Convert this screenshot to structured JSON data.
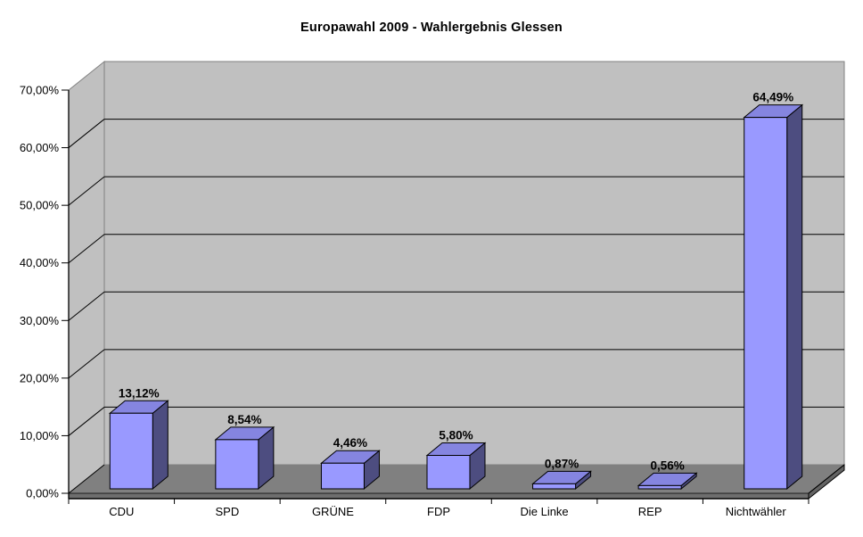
{
  "chart_data": {
    "type": "bar",
    "style": "3d-column",
    "title": "Europawahl 2009 - Wahlergebnis Glessen",
    "categories": [
      "CDU",
      "SPD",
      "GRÜNE",
      "FDP",
      "Die Linke",
      "REP",
      "Nichtwähler"
    ],
    "values": [
      13.12,
      8.54,
      4.46,
      5.8,
      0.87,
      0.56,
      64.49
    ],
    "data_labels": [
      "13,12%",
      "8,54%",
      "4,46%",
      "5,80%",
      "0,87%",
      "0,56%",
      "64,49%"
    ],
    "xlabel": "",
    "ylabel": "",
    "ylim": [
      0,
      70
    ],
    "ytick_step": 10,
    "ytick_labels": [
      "0,00%",
      "10,00%",
      "20,00%",
      "30,00%",
      "40,00%",
      "50,00%",
      "60,00%",
      "70,00%"
    ],
    "grid": true,
    "legend": false,
    "colors": {
      "background": "#FFFFFF",
      "wall": "#C0C0C0",
      "wall_border": "#808080",
      "floor": "#808080",
      "floor_front": "#6E6E6E",
      "floor_side": "#646464",
      "gridline": "#000000",
      "axis": "#000000",
      "text": "#000000",
      "bar_front": "#9999FF",
      "bar_top": "#8585E0",
      "bar_side": "#4D4D80"
    }
  }
}
